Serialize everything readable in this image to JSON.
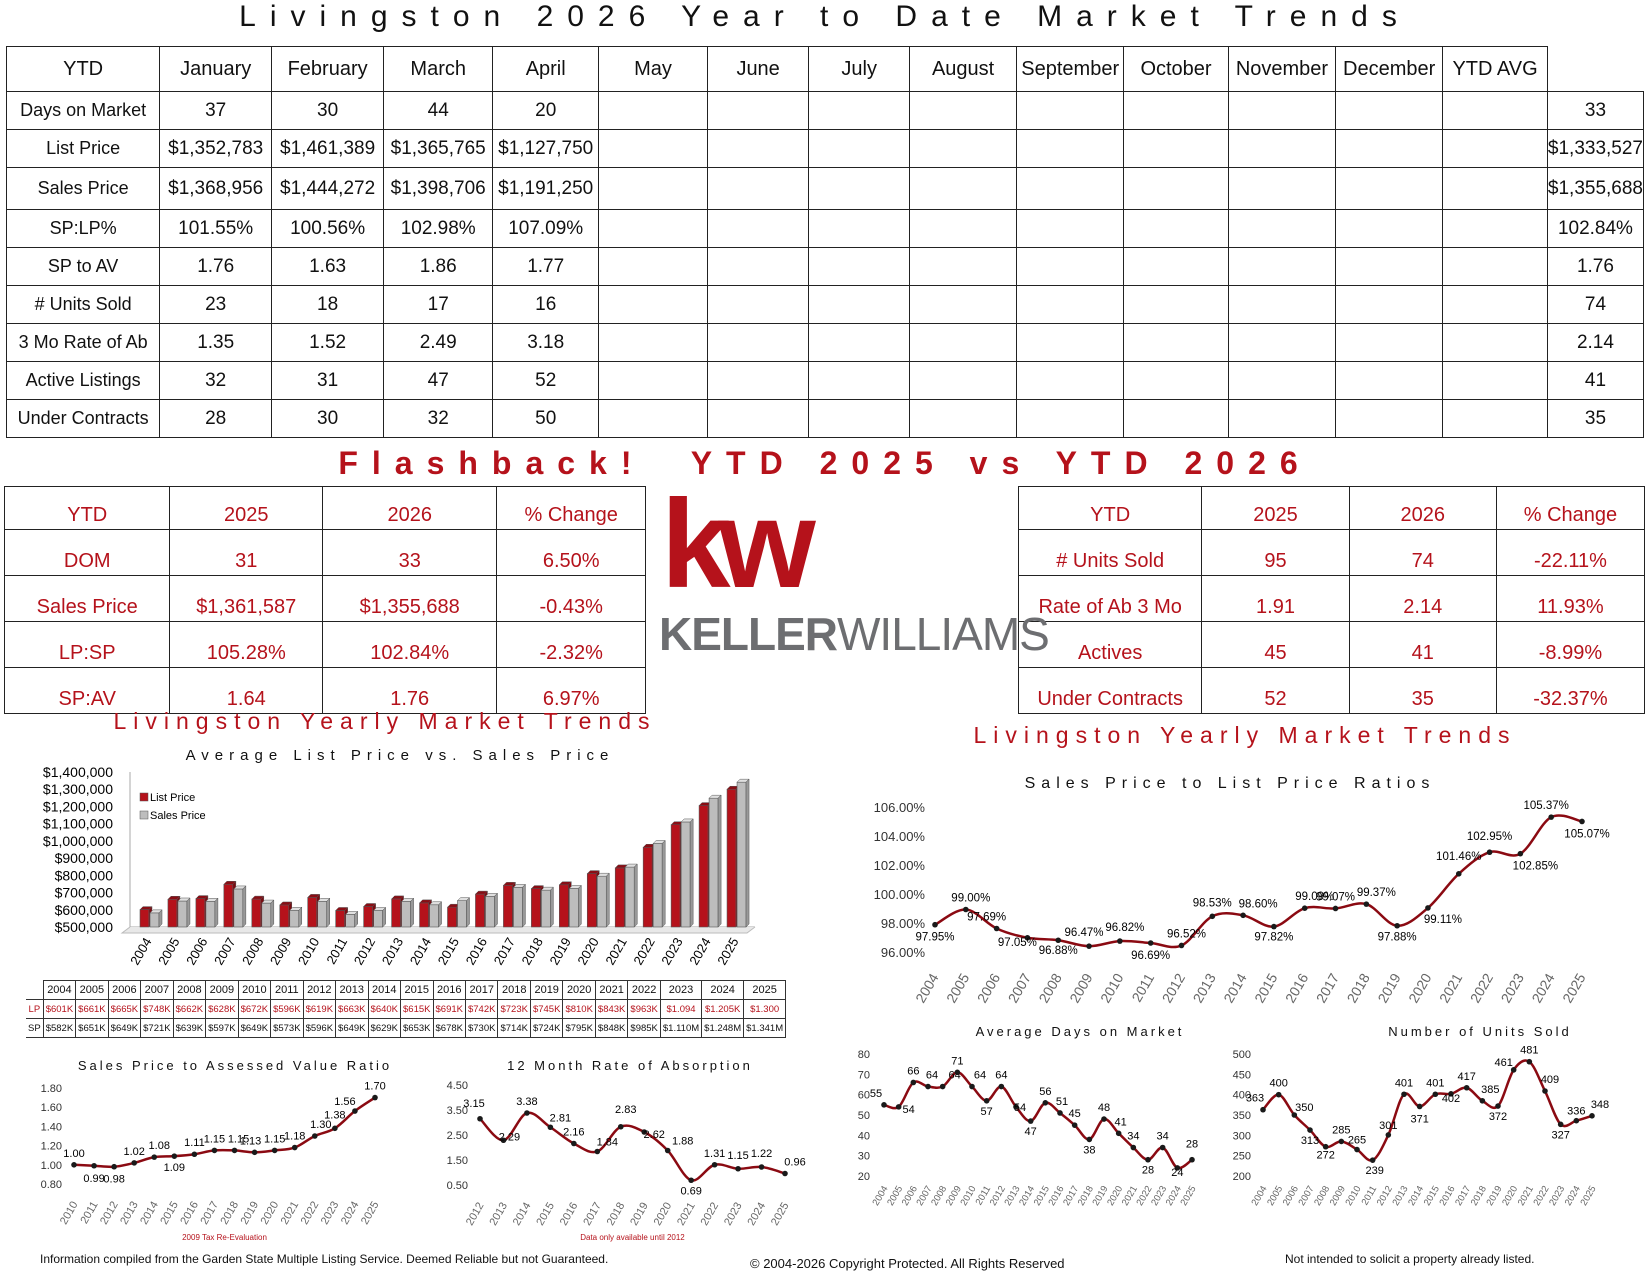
{
  "title": "Livingston 2026 Year to Date Market Trends",
  "ytd_table": {
    "headers": [
      "YTD",
      "January",
      "February",
      "March",
      "April",
      "May",
      "June",
      "July",
      "August",
      "September",
      "October",
      "November",
      "December",
      "YTD AVG"
    ],
    "rows": [
      {
        "label": "Days on Market",
        "values": [
          "37",
          "30",
          "44",
          "20",
          "",
          "",
          "",
          "",
          "",
          "",
          "",
          "",
          ""
        ],
        "avg": "33"
      },
      {
        "label": "List Price",
        "values": [
          "$1,352,783",
          "$1,461,389",
          "$1,365,765",
          "$1,127,750",
          "",
          "",
          "",
          "",
          "",
          "",
          "",
          "",
          ""
        ],
        "avg": "$1,333,527"
      },
      {
        "label": "Sales Price",
        "values": [
          "$1,368,956",
          "$1,444,272",
          "$1,398,706",
          "$1,191,250",
          "",
          "",
          "",
          "",
          "",
          "",
          "",
          "",
          ""
        ],
        "avg": "$1,355,688"
      },
      {
        "label": "SP:LP%",
        "values": [
          "101.55%",
          "100.56%",
          "102.98%",
          "107.09%",
          "",
          "",
          "",
          "",
          "",
          "",
          "",
          "",
          ""
        ],
        "avg": "102.84%"
      },
      {
        "label": "SP to AV",
        "values": [
          "1.76",
          "1.63",
          "1.86",
          "1.77",
          "",
          "",
          "",
          "",
          "",
          "",
          "",
          "",
          ""
        ],
        "avg": "1.76"
      },
      {
        "label": "# Units Sold",
        "values": [
          "23",
          "18",
          "17",
          "16",
          "",
          "",
          "",
          "",
          "",
          "",
          "",
          "",
          ""
        ],
        "avg": "74"
      },
      {
        "label": "3 Mo Rate of Ab",
        "values": [
          "1.35",
          "1.52",
          "2.49",
          "3.18",
          "",
          "",
          "",
          "",
          "",
          "",
          "",
          "",
          ""
        ],
        "avg": "2.14"
      },
      {
        "label": "Active Listings",
        "values": [
          "32",
          "31",
          "47",
          "52",
          "",
          "",
          "",
          "",
          "",
          "",
          "",
          "",
          ""
        ],
        "avg": "41"
      },
      {
        "label": "Under Contracts",
        "values": [
          "28",
          "30",
          "32",
          "50",
          "",
          "",
          "",
          "",
          "",
          "",
          "",
          "",
          ""
        ],
        "avg": "35"
      }
    ]
  },
  "flashback_title": "Flashback!  YTD 2025 vs YTD 2026",
  "compare_left": {
    "headers": [
      "YTD",
      "2025",
      "2026",
      "% Change"
    ],
    "rows": [
      [
        "DOM",
        "31",
        "33",
        "6.50%"
      ],
      [
        "Sales Price",
        "$1,361,587",
        "$1,355,688",
        "-0.43%"
      ],
      [
        "LP:SP",
        "105.28%",
        "102.84%",
        "-2.32%"
      ],
      [
        "SP:AV",
        "1.64",
        "1.76",
        "6.97%"
      ]
    ]
  },
  "compare_right": {
    "headers": [
      "YTD",
      "2025",
      "2026",
      "% Change"
    ],
    "rows": [
      [
        "# Units Sold",
        "95",
        "74",
        "-22.11%"
      ],
      [
        "Rate of Ab 3 Mo",
        "1.91",
        "2.14",
        "11.93%"
      ],
      [
        "Actives",
        "45",
        "41",
        "-8.99%"
      ],
      [
        "Under Contracts",
        "52",
        "35",
        "-32.37%"
      ]
    ]
  },
  "logo": {
    "mark": "kw",
    "wordmark_bold": "KELLER",
    "wordmark_light": "WILLIAMS",
    "brand_color": "#b5121b",
    "gray": "#6d6e71"
  },
  "section_left_title": "Livingston Yearly Market Trends",
  "section_right_title": "Livingston Yearly Market Trends",
  "lp_table": {
    "years": [
      "2004",
      "2005",
      "2006",
      "2007",
      "2008",
      "2009",
      "2010",
      "2011",
      "2012",
      "2013",
      "2014",
      "2015",
      "2016",
      "2017",
      "2018",
      "2019",
      "2020",
      "2021",
      "2022",
      "2023",
      "2024",
      "2025"
    ],
    "lp_label": "LP",
    "sp_label": "SP",
    "lp": [
      "$601K",
      "$661K",
      "$665K",
      "$748K",
      "$662K",
      "$628K",
      "$672K",
      "$596K",
      "$619K",
      "$663K",
      "$640K",
      "$615K",
      "$691K",
      "$742K",
      "$723K",
      "$745K",
      "$810K",
      "$843K",
      "$963K",
      "$1.094",
      "$1.205K",
      "$1.300"
    ],
    "sp": [
      "$582K",
      "$651K",
      "$649K",
      "$721K",
      "$639K",
      "$597K",
      "$649K",
      "$573K",
      "$596K",
      "$649K",
      "$629K",
      "$653K",
      "$678K",
      "$730K",
      "$714K",
      "$724K",
      "$795K",
      "$848K",
      "$985K",
      "$1.110M",
      "$1.248M",
      "$1.341M"
    ]
  },
  "chart_data": [
    {
      "type": "bar",
      "title": "Average List Price vs. Sales Price",
      "categories": [
        "2004",
        "2005",
        "2006",
        "2007",
        "2008",
        "2009",
        "2010",
        "2011",
        "2012",
        "2013",
        "2014",
        "2015",
        "2016",
        "2017",
        "2018",
        "2019",
        "2020",
        "2021",
        "2022",
        "2023",
        "2024",
        "2025"
      ],
      "series": [
        {
          "name": "List Price",
          "color": "#b5121b",
          "values": [
            601,
            661,
            665,
            748,
            662,
            628,
            672,
            596,
            619,
            663,
            640,
            615,
            691,
            742,
            723,
            745,
            810,
            843,
            963,
            1094,
            1205,
            1300
          ]
        },
        {
          "name": "Sales Price",
          "color": "#bdbdbd",
          "values": [
            582,
            651,
            649,
            721,
            639,
            597,
            649,
            573,
            596,
            649,
            629,
            653,
            678,
            730,
            714,
            724,
            795,
            848,
            985,
            1110,
            1248,
            1341
          ]
        }
      ],
      "yticks": [
        "$1,400,000",
        "$1,300,000",
        "$1,200,000",
        "$1,100,000",
        "$1,000,000",
        "$900,000",
        "$800,000",
        "$700,000",
        "$600,000",
        "$500,000"
      ],
      "ylim": [
        500,
        1400
      ],
      "legend_position": "top-left"
    },
    {
      "type": "line",
      "title": "Sales Price to List Price Ratios",
      "x": [
        "2004",
        "2005",
        "2006",
        "2007",
        "2008",
        "2009",
        "2010",
        "2011",
        "2012",
        "2013",
        "2014",
        "2015",
        "2016",
        "2017",
        "2018",
        "2019",
        "2020",
        "2021",
        "2022",
        "2023",
        "2024",
        "2025"
      ],
      "values": [
        97.95,
        99.0,
        97.69,
        97.05,
        96.88,
        96.47,
        96.82,
        96.69,
        96.52,
        98.53,
        98.6,
        97.82,
        99.09,
        99.07,
        99.37,
        97.88,
        99.11,
        101.46,
        102.95,
        102.85,
        105.37,
        105.07
      ],
      "labels": [
        "97.95%",
        "99.00%",
        "97.69%",
        "97.05%",
        "96.88%",
        "96.47%",
        "96.82%",
        "96.69%",
        "96.52%",
        "98.53%",
        "98.60%",
        "97.82%",
        "99.09%",
        "99.07%",
        "99.37%",
        "97.88%",
        "99.11%",
        "101.46%",
        "102.95%",
        "102.85%",
        "105.37%",
        "105.07%"
      ],
      "yticks": [
        "106.00%",
        "104.00%",
        "102.00%",
        "100.00%",
        "98.00%",
        "96.00%"
      ],
      "ylim": [
        96,
        106
      ]
    },
    {
      "type": "line",
      "title": "Sales Price to Assessed Value Ratio",
      "x": [
        "2010",
        "2011",
        "2012",
        "2013",
        "2014",
        "2015",
        "2016",
        "2017",
        "2018",
        "2019",
        "2020",
        "2021",
        "2022",
        "2023",
        "2024",
        "2025"
      ],
      "values": [
        1.0,
        0.99,
        0.98,
        1.02,
        1.08,
        1.09,
        1.11,
        1.15,
        1.15,
        1.13,
        1.15,
        1.18,
        1.3,
        1.38,
        1.56,
        1.7
      ],
      "labels": [
        "1.00",
        "0.99",
        "0.98",
        "1.02",
        "1.08",
        "1.09",
        "1.11",
        "1.15",
        "1.15",
        "1.13",
        "1.15",
        "1.18",
        "1.30",
        "1.38",
        "1.56",
        "1.70"
      ],
      "yticks": [
        "1.80",
        "1.60",
        "1.40",
        "1.20",
        "1.00",
        "0.80"
      ],
      "ylim": [
        0.8,
        1.8
      ],
      "note": "2009 Tax Re-Evaluation"
    },
    {
      "type": "line",
      "title": "12 Month Rate of Absorption",
      "x": [
        "2012",
        "2013",
        "2014",
        "2015",
        "2016",
        "2017",
        "2018",
        "2019",
        "2020",
        "2021",
        "2022",
        "2023",
        "2024",
        "2025"
      ],
      "values": [
        3.15,
        2.29,
        3.38,
        2.81,
        2.16,
        1.84,
        2.83,
        2.62,
        1.88,
        0.69,
        1.31,
        1.15,
        1.22,
        0.96
      ],
      "labels": [
        "3.15",
        "2.29",
        "3.38",
        "2.81",
        "2.16",
        "1.84",
        "2.83",
        "2.62",
        "1.88",
        "0.69",
        "1.31",
        "1.15",
        "1.22",
        "0.96"
      ],
      "yticks": [
        "4.50",
        "3.50",
        "2.50",
        "1.50",
        "0.50"
      ],
      "ylim": [
        0.5,
        4.5
      ],
      "note": "Data only available until 2012"
    },
    {
      "type": "line",
      "title": "Average Days on Market",
      "x": [
        "2004",
        "2005",
        "2006",
        "2007",
        "2008",
        "2009",
        "2010",
        "2011",
        "2012",
        "2013",
        "2014",
        "2015",
        "2016",
        "2017",
        "2018",
        "2019",
        "2020",
        "2021",
        "2022",
        "2023",
        "2024",
        "2025"
      ],
      "values": [
        55,
        54,
        66,
        64,
        64,
        71,
        64,
        57,
        64,
        54,
        47,
        56,
        51,
        45,
        38,
        48,
        41,
        34,
        28,
        34,
        24,
        28
      ],
      "labels": [
        "55",
        "54",
        "66",
        "64",
        "64",
        "71",
        "64",
        "57",
        "64",
        "54",
        "47",
        "56",
        "51",
        "45",
        "38",
        "48",
        "41",
        "34",
        "28",
        "34",
        "24",
        "28"
      ],
      "yticks": [
        "80",
        "70",
        "60",
        "50",
        "40",
        "30",
        "20"
      ],
      "ylim": [
        20,
        80
      ]
    },
    {
      "type": "line",
      "title": "Number of Units Sold",
      "x": [
        "2004",
        "2005",
        "2006",
        "2007",
        "2008",
        "2009",
        "2010",
        "2011",
        "2012",
        "2013",
        "2014",
        "2015",
        "2016",
        "2017",
        "2018",
        "2019",
        "2020",
        "2021",
        "2022",
        "2023",
        "2024",
        "2025"
      ],
      "values": [
        363,
        400,
        350,
        313,
        272,
        285,
        265,
        239,
        301,
        401,
        371,
        401,
        402,
        417,
        385,
        372,
        461,
        481,
        409,
        327,
        336,
        348
      ],
      "labels": [
        "363",
        "400",
        "350",
        "313",
        "272",
        "285",
        "265",
        "239",
        "301",
        "401",
        "371",
        "401",
        "402",
        "417",
        "385",
        "372",
        "461",
        "481",
        "409",
        "327",
        "336",
        "348"
      ],
      "yticks": [
        "500",
        "450",
        "400",
        "350",
        "300",
        "250",
        "200"
      ],
      "ylim": [
        200,
        500
      ]
    }
  ],
  "footer": {
    "left": "Information compiled from the Garden State Multiple Listing Service.  Deemed Reliable but not Guaranteed.",
    "center": "© 2004-2026 Copyright Protected.  All Rights Reserved",
    "right": "Not intended to solicit a property already listed."
  }
}
